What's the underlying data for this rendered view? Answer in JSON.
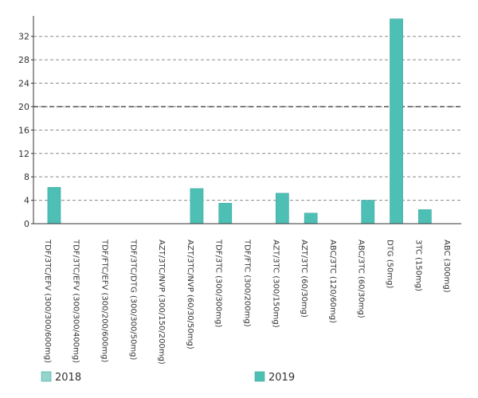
{
  "chart_data": {
    "type": "bar",
    "categories": [
      "TDF/3TC/EFV (300/300/600mg)",
      "TDF/3TC/EFV (300/300/400mg)",
      "TDF/FTC/EFV (300/200/600mg)",
      "TDF/3TC/DTG (300/300/50mg)",
      "AZT/3TC/NVP (300/150/200mg)",
      "AZT/3TC/NVP (60/30/50mg)",
      "TDF/3TC (300/300mg)",
      "TDF/FTC (300/200mg)",
      "AZT/3TC (300/150mg)",
      "AZT/3TC (60/30mg)",
      "ABC/3TC (120/60mg)",
      "ABC/3TC (60/30mg)",
      "DTG (50mg)",
      "3TC (150mg)",
      "ABC (300mg)"
    ],
    "series": [
      {
        "name": "2018",
        "color": "#93d5cd",
        "values": [
          0,
          0,
          0,
          0,
          0,
          0,
          0,
          0,
          0,
          0,
          0,
          0,
          0,
          0,
          0
        ]
      },
      {
        "name": "2019",
        "color": "#4dbfb4",
        "values": [
          6.2,
          0,
          0,
          0,
          0,
          6.0,
          3.5,
          0,
          5.2,
          1.8,
          0,
          4.0,
          35.0,
          2.4,
          0
        ]
      }
    ],
    "yticks": [
      0,
      4,
      8,
      12,
      16,
      20,
      24,
      28,
      32
    ],
    "ylim": [
      0,
      35.5
    ],
    "reference_line": 20,
    "grid": true,
    "legend_position": "bottom"
  }
}
